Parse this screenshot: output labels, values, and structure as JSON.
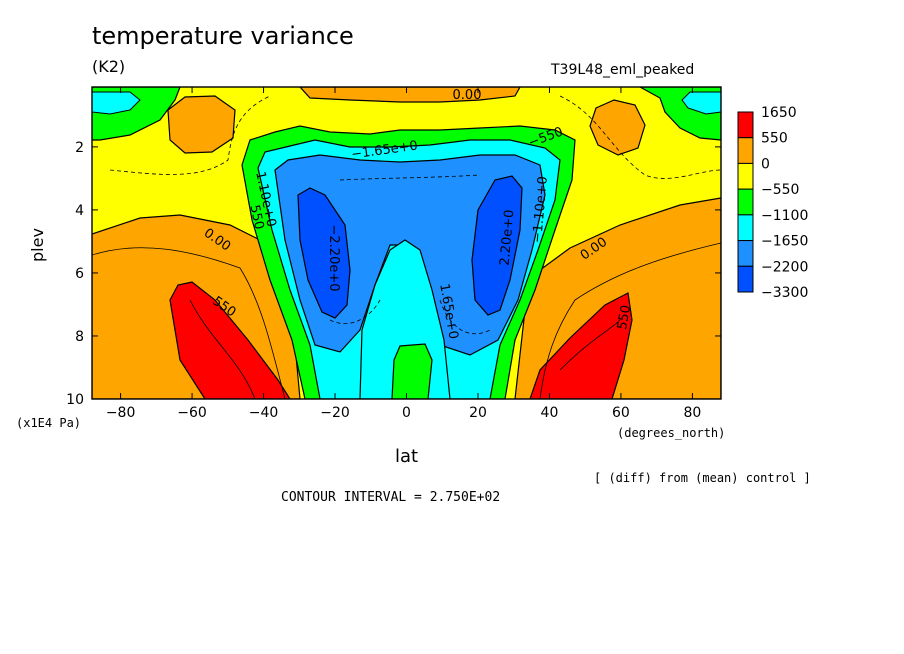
{
  "chart_data": {
    "type": "heatmap",
    "title": "temperature variance",
    "units": "(K2)",
    "run_name": "T39L48_eml_peaked",
    "xlabel": "lat",
    "ylabel": "plev",
    "x_units": "(degrees_north)",
    "y_units": "(x1E4 Pa)",
    "xlim": [
      -88,
      88
    ],
    "ylim": [
      0.1,
      10
    ],
    "y_inverted": true,
    "x_ticks": [
      -80,
      -60,
      -40,
      -20,
      0,
      20,
      40,
      60,
      80
    ],
    "y_ticks": [
      2,
      4,
      6,
      8,
      10
    ],
    "note": "[ (diff) from (mean) control ]",
    "contour_interval_text": "CONTOUR INTERVAL = 2.750E+02",
    "contour_labels": [
      "0.00",
      "-550",
      "-1.65e+0",
      "1.10e+0",
      "550",
      "-2.20e+0",
      "2.20e+0",
      "-1.10e+0",
      "1.65e+0",
      "0.00",
      "550",
      "0.00",
      "550"
    ],
    "colorbar": {
      "levels": [
        "1650",
        "550",
        "0",
        "-550",
        "-1100",
        "-1650",
        "-2200",
        "-3300"
      ],
      "colors": [
        "#ff0000",
        "#ffa500",
        "#ffff00",
        "#00ff00",
        "#00ffff",
        "#1e90ff",
        "#0050ff"
      ]
    }
  }
}
